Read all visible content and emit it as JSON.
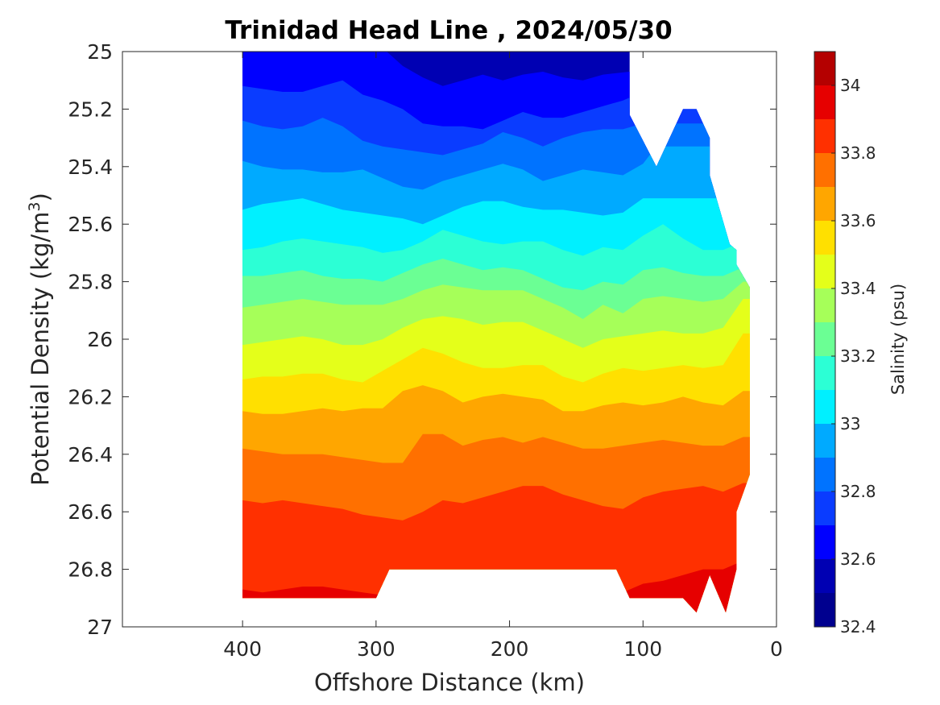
{
  "chart_data": {
    "type": "heatmap",
    "subtype": "filled-contour",
    "title": "Trinidad Head Line , 2024/05/30",
    "xlabel": "Offshore Distance (km)",
    "ylabel": "Potential Density (kg/m",
    "ylabel_sup": "3",
    "ylabel_tail": ")",
    "xlim": [
      0,
      490
    ],
    "x_reversed": true,
    "ylim": [
      25,
      27
    ],
    "y_reversed": true,
    "xticks": [
      400,
      300,
      200,
      100,
      0
    ],
    "xtick_labels": [
      "400",
      "300",
      "200",
      "100",
      "0"
    ],
    "yticks": [
      25,
      25.2,
      25.4,
      25.6,
      25.8,
      26,
      26.2,
      26.4,
      26.6,
      26.8,
      27
    ],
    "ytick_labels": [
      "25",
      "25.2",
      "25.4",
      "25.6",
      "25.8",
      "26",
      "26.2",
      "26.4",
      "26.6",
      "26.8",
      "27"
    ],
    "colorbar": {
      "label": "Salinity (psu)",
      "range": [
        32.4,
        34.1
      ],
      "ticks": [
        32.4,
        32.6,
        32.8,
        33,
        33.2,
        33.4,
        33.6,
        33.8,
        34
      ],
      "tick_labels": [
        "32.4",
        "32.6",
        "32.8",
        "33",
        "33.2",
        "33.4",
        "33.6",
        "33.8",
        "34"
      ],
      "levels": [
        32.4,
        32.5,
        32.6,
        32.7,
        32.8,
        32.9,
        33.0,
        33.1,
        33.2,
        33.3,
        33.4,
        33.5,
        33.6,
        33.7,
        33.8,
        33.9,
        34.0,
        34.1
      ],
      "colors": [
        "#00008f",
        "#0000b3",
        "#0000ff",
        "#0a3cff",
        "#0073ff",
        "#00aaff",
        "#00f0ff",
        "#2cffd5",
        "#6bff94",
        "#a6ff59",
        "#e4ff1a",
        "#ffe000",
        "#ffa600",
        "#ff7000",
        "#ff3000",
        "#e60000",
        "#b40000"
      ]
    },
    "grid": false,
    "data_extent": {
      "x_top_left": 400,
      "x_top_right": 110,
      "bottom_y": 26.9,
      "gap_bottom_x_range": [
        290,
        120
      ],
      "gap_bottom_y": 26.8,
      "right_edge_min_x": 20
    },
    "contours": [
      {
        "level": 32.6,
        "x": [
          292,
          280,
          265,
          250,
          235,
          220,
          205,
          190,
          175,
          160,
          145,
          130,
          110
        ],
        "y": [
          25.0,
          25.05,
          25.09,
          25.12,
          25.1,
          25.08,
          25.1,
          25.08,
          25.07,
          25.09,
          25.1,
          25.08,
          25.07
        ]
      },
      {
        "level": 32.7,
        "x": [
          400,
          385,
          370,
          355,
          340,
          325,
          310,
          295,
          280,
          265,
          250,
          235,
          220,
          205,
          190,
          175,
          160,
          145,
          130,
          115,
          110
        ],
        "y": [
          25.12,
          25.13,
          25.14,
          25.14,
          25.12,
          25.1,
          25.15,
          25.17,
          25.2,
          25.25,
          25.26,
          25.26,
          25.27,
          25.24,
          25.21,
          25.23,
          25.23,
          25.21,
          25.19,
          25.17,
          25.16
        ]
      },
      {
        "level": 32.8,
        "x": [
          400,
          385,
          370,
          355,
          340,
          325,
          310,
          295,
          280,
          265,
          250,
          235,
          220,
          205,
          190,
          175,
          160,
          145,
          130,
          115,
          100
        ],
        "y": [
          25.24,
          25.26,
          25.27,
          25.26,
          25.23,
          25.26,
          25.31,
          25.33,
          25.34,
          25.35,
          25.36,
          25.34,
          25.32,
          25.28,
          25.3,
          25.33,
          25.3,
          25.28,
          25.27,
          25.27,
          25.25
        ]
      },
      {
        "level": 32.9,
        "x": [
          400,
          385,
          370,
          355,
          340,
          325,
          310,
          295,
          280,
          265,
          250,
          235,
          220,
          205,
          190,
          175,
          160,
          145,
          130,
          115,
          100,
          90
        ],
        "y": [
          25.38,
          25.4,
          25.41,
          25.41,
          25.42,
          25.42,
          25.41,
          25.44,
          25.47,
          25.48,
          25.45,
          25.43,
          25.41,
          25.39,
          25.41,
          25.45,
          25.43,
          25.41,
          25.42,
          25.43,
          25.39,
          25.33
        ]
      },
      {
        "level": 33.0,
        "x": [
          400,
          385,
          370,
          355,
          340,
          325,
          310,
          295,
          280,
          265,
          250,
          235,
          220,
          205,
          190,
          175,
          160,
          145,
          130,
          115,
          100
        ],
        "y": [
          25.55,
          25.53,
          25.52,
          25.51,
          25.53,
          25.55,
          25.56,
          25.57,
          25.58,
          25.6,
          25.57,
          25.54,
          25.52,
          25.52,
          25.54,
          25.55,
          25.55,
          25.56,
          25.57,
          25.56,
          25.51
        ]
      },
      {
        "level": 33.1,
        "x": [
          400,
          385,
          370,
          355,
          340,
          325,
          310,
          295,
          280,
          265,
          250,
          235,
          220,
          205,
          190,
          175,
          160,
          145,
          130,
          115,
          100,
          85,
          70,
          55,
          40,
          30
        ],
        "y": [
          25.69,
          25.68,
          25.66,
          25.65,
          25.66,
          25.67,
          25.68,
          25.7,
          25.69,
          25.66,
          25.62,
          25.64,
          25.66,
          25.67,
          25.66,
          25.66,
          25.69,
          25.71,
          25.68,
          25.69,
          25.64,
          25.6,
          25.65,
          25.69,
          25.69,
          25.67
        ]
      },
      {
        "level": 33.2,
        "x": [
          400,
          385,
          370,
          355,
          340,
          325,
          310,
          295,
          280,
          265,
          250,
          235,
          220,
          205,
          190,
          175,
          160,
          145,
          130,
          115,
          100,
          85,
          70,
          55,
          40,
          25
        ],
        "y": [
          25.78,
          25.78,
          25.77,
          25.76,
          25.78,
          25.79,
          25.79,
          25.8,
          25.77,
          25.74,
          25.72,
          25.74,
          25.76,
          25.75,
          25.76,
          25.79,
          25.82,
          25.83,
          25.8,
          25.81,
          25.76,
          25.75,
          25.77,
          25.78,
          25.78,
          25.75
        ]
      },
      {
        "level": 33.3,
        "x": [
          400,
          385,
          370,
          355,
          340,
          325,
          310,
          295,
          280,
          265,
          250,
          235,
          220,
          205,
          190,
          175,
          160,
          145,
          130,
          115,
          100,
          85,
          70,
          55,
          40,
          25
        ],
        "y": [
          25.89,
          25.88,
          25.87,
          25.86,
          25.87,
          25.88,
          25.88,
          25.88,
          25.86,
          25.83,
          25.81,
          25.82,
          25.83,
          25.83,
          25.83,
          25.86,
          25.89,
          25.93,
          25.88,
          25.91,
          25.86,
          25.85,
          25.86,
          25.87,
          25.86,
          25.8
        ]
      },
      {
        "level": 33.4,
        "x": [
          400,
          385,
          370,
          355,
          340,
          325,
          310,
          295,
          280,
          265,
          250,
          235,
          220,
          205,
          190,
          175,
          160,
          145,
          130,
          115,
          100,
          85,
          70,
          55,
          40,
          25
        ],
        "y": [
          26.02,
          26.01,
          26.0,
          25.99,
          26.0,
          26.02,
          26.02,
          26.0,
          25.96,
          25.93,
          25.92,
          25.93,
          25.95,
          25.94,
          25.94,
          25.97,
          26.0,
          26.03,
          26.0,
          25.99,
          25.98,
          25.97,
          25.98,
          25.98,
          25.96,
          25.86
        ]
      },
      {
        "level": 33.5,
        "x": [
          400,
          385,
          370,
          355,
          340,
          325,
          310,
          295,
          280,
          265,
          250,
          235,
          220,
          205,
          190,
          175,
          160,
          145,
          130,
          115,
          100,
          85,
          70,
          55,
          40,
          25
        ],
        "y": [
          26.14,
          26.13,
          26.13,
          26.12,
          26.12,
          26.14,
          26.15,
          26.11,
          26.07,
          26.03,
          26.05,
          26.08,
          26.1,
          26.1,
          26.09,
          26.09,
          26.13,
          26.15,
          26.12,
          26.1,
          26.11,
          26.1,
          26.09,
          26.1,
          26.09,
          25.98
        ]
      },
      {
        "level": 33.6,
        "x": [
          400,
          385,
          370,
          355,
          340,
          325,
          310,
          295,
          280,
          265,
          250,
          235,
          220,
          205,
          190,
          175,
          160,
          145,
          130,
          115,
          100,
          85,
          70,
          55,
          40,
          25
        ],
        "y": [
          26.25,
          26.26,
          26.26,
          26.25,
          26.24,
          26.25,
          26.24,
          26.24,
          26.18,
          26.16,
          26.18,
          26.22,
          26.2,
          26.19,
          26.2,
          26.21,
          26.25,
          26.25,
          26.23,
          26.22,
          26.23,
          26.22,
          26.2,
          26.22,
          26.23,
          26.18
        ]
      },
      {
        "level": 33.7,
        "x": [
          400,
          385,
          370,
          355,
          340,
          325,
          310,
          295,
          280,
          265,
          250,
          235,
          220,
          205,
          190,
          175,
          160,
          145,
          130,
          115,
          100,
          85,
          70,
          55,
          40,
          25
        ],
        "y": [
          26.38,
          26.39,
          26.4,
          26.4,
          26.4,
          26.41,
          26.42,
          26.43,
          26.43,
          26.33,
          26.33,
          26.37,
          26.35,
          26.34,
          26.36,
          26.34,
          26.36,
          26.38,
          26.38,
          26.37,
          26.36,
          26.35,
          26.36,
          26.37,
          26.37,
          26.34
        ]
      },
      {
        "level": 33.8,
        "x": [
          400,
          385,
          370,
          355,
          340,
          325,
          310,
          295,
          280,
          265,
          250,
          235,
          220,
          205,
          190,
          175,
          160,
          145,
          130,
          115,
          100,
          85,
          70,
          55,
          40,
          25
        ],
        "y": [
          26.56,
          26.57,
          26.56,
          26.57,
          26.58,
          26.59,
          26.61,
          26.62,
          26.63,
          26.6,
          26.56,
          26.57,
          26.55,
          26.53,
          26.51,
          26.51,
          26.54,
          26.56,
          26.58,
          26.59,
          26.55,
          26.53,
          26.52,
          26.51,
          26.53,
          26.5
        ]
      },
      {
        "level": 33.9,
        "x": [
          400,
          385,
          370,
          355,
          340,
          325,
          310,
          295,
          280,
          265,
          250,
          235,
          220,
          205,
          190,
          175,
          160,
          145,
          130,
          115,
          100,
          85,
          70,
          55,
          40,
          30
        ],
        "y": [
          26.87,
          26.88,
          26.87,
          26.86,
          26.86,
          26.87,
          26.88,
          26.89,
          26.9,
          26.9,
          26.9,
          26.9,
          26.9,
          26.9,
          26.9,
          26.9,
          26.9,
          26.9,
          26.9,
          26.88,
          26.85,
          26.84,
          26.82,
          26.8,
          26.8,
          26.78
        ]
      }
    ]
  }
}
